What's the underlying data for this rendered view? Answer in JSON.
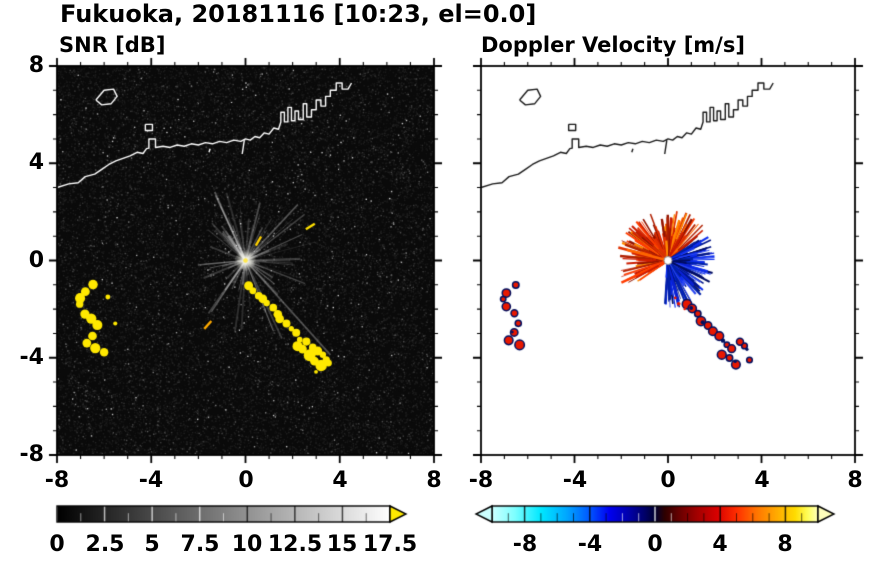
{
  "title": "Fukuoka, 20181116 [10:23, el=0.0]",
  "panels": {
    "snr": {
      "title": "SNR [dB]",
      "x_tick_labels": [
        "-8",
        "-4",
        "0",
        "4",
        "8"
      ],
      "y_tick_labels": [
        "8",
        "4",
        "0",
        "-4",
        "-8"
      ],
      "colorbar_labels": [
        "0",
        "2.5",
        "5",
        "7.5",
        "10",
        "12.5",
        "15",
        "17.5"
      ]
    },
    "doppler": {
      "title": "Doppler Velocity [m/s]",
      "x_tick_labels": [
        "-8",
        "-4",
        "0",
        "4",
        "8"
      ],
      "colorbar_labels": [
        "-8",
        "-4",
        "0",
        "4",
        "8"
      ]
    }
  },
  "chart_data": [
    {
      "type": "heatmap",
      "title": "SNR [dB]",
      "x_range": [
        -8,
        8
      ],
      "y_range": [
        -8,
        8
      ],
      "x_ticks": [
        -8,
        -4,
        0,
        4,
        8
      ],
      "y_ticks": [
        -8,
        -4,
        0,
        4,
        8
      ],
      "minor_tick_step": 1,
      "colorbar": {
        "range": [
          0,
          17.5
        ],
        "tick_values": [
          0,
          2.5,
          5,
          7.5,
          10,
          12.5,
          15,
          17.5
        ],
        "minor_step": 1.25,
        "stops": [
          [
            0,
            "#000000"
          ],
          [
            1,
            "#ffffff"
          ]
        ],
        "overflow_right": "#ffe800"
      },
      "background": {
        "color": "#0a0a0a",
        "noise": "dark gray receiver-noise speckle"
      },
      "radar_site": [
        0,
        0
      ],
      "clutter_rays": {
        "count": 115,
        "max_range": 3.1,
        "color": "#d7d7d7"
      },
      "long_rays": [
        {
          "angle": -48,
          "len": 5.3,
          "alpha": 0.32
        },
        {
          "angle": -125,
          "len": 2.7,
          "alpha": 0.26
        },
        {
          "angle": 76,
          "len": 2.5,
          "alpha": 0.3
        },
        {
          "angle": 132,
          "len": 2.1,
          "alpha": 0.2
        },
        {
          "angle": -65,
          "len": 3.6,
          "alpha": 0.22
        }
      ],
      "strong_echoes": {
        "color": "#ffe800",
        "west_cluster": [
          [
            -6.5,
            -1.05
          ],
          [
            -6.8,
            -1.25
          ],
          [
            -7.05,
            -1.5
          ],
          [
            -7.1,
            -1.85
          ],
          [
            -6.85,
            -2.15
          ],
          [
            -6.55,
            -2.35
          ],
          [
            -6.3,
            -2.7
          ],
          [
            -6.45,
            -3.05
          ],
          [
            -6.75,
            -3.35
          ],
          [
            -6.4,
            -3.6
          ],
          [
            -6.0,
            -3.72
          ]
        ],
        "southeast_chain": [
          [
            0.15,
            -1.05
          ],
          [
            0.35,
            -1.25
          ],
          [
            0.55,
            -1.45
          ],
          [
            0.75,
            -1.6
          ],
          [
            0.95,
            -1.8
          ],
          [
            1.15,
            -2.0
          ],
          [
            1.35,
            -2.2
          ],
          [
            1.5,
            -2.45
          ],
          [
            1.7,
            -2.6
          ],
          [
            1.9,
            -2.8
          ],
          [
            2.1,
            -3.0
          ],
          [
            2.3,
            -3.2
          ],
          [
            2.55,
            -3.35
          ],
          [
            2.8,
            -3.55
          ],
          [
            3.05,
            -3.7
          ],
          [
            3.25,
            -3.9
          ],
          [
            3.45,
            -4.1
          ]
        ],
        "southeast_blobs": [
          [
            2.45,
            -3.6
          ],
          [
            2.7,
            -3.85
          ],
          [
            2.95,
            -4.1
          ],
          [
            3.2,
            -4.3
          ],
          [
            2.2,
            -3.5
          ],
          [
            3.5,
            -4.2
          ]
        ],
        "specks": [
          [
            -5.55,
            -2.55
          ],
          [
            -5.85,
            -1.5
          ],
          [
            2.95,
            -4.55
          ]
        ]
      },
      "dashes": [
        {
          "x": 2.75,
          "y": 1.4,
          "angle": 32,
          "color": "#ffe000"
        },
        {
          "x": -1.6,
          "y": -2.65,
          "angle": 48,
          "color": "#ffaa00"
        },
        {
          "x": 0.55,
          "y": 0.8,
          "angle": 60,
          "color": "#ffd000"
        }
      ],
      "coast_color": "#ffffff",
      "coastline": [
        [
          -8,
          3.0
        ],
        [
          -7.5,
          3.15
        ],
        [
          -7.1,
          3.2
        ],
        [
          -6.8,
          3.45
        ],
        [
          -6.4,
          3.55
        ],
        [
          -6.1,
          3.75
        ],
        [
          -5.8,
          3.95
        ],
        [
          -5.5,
          4.1
        ],
        [
          -5.2,
          4.2
        ],
        [
          -4.9,
          4.3
        ],
        [
          -4.6,
          4.45
        ],
        [
          -4.35,
          4.4
        ],
        [
          -4.2,
          4.6
        ],
        [
          -4.1,
          4.62
        ],
        [
          -4.1,
          5.0
        ],
        [
          -3.82,
          5.0
        ],
        [
          -3.82,
          4.65
        ],
        [
          -3.5,
          4.7
        ],
        [
          -3.2,
          4.65
        ],
        [
          -2.9,
          4.75
        ],
        [
          -2.6,
          4.7
        ],
        [
          -2.3,
          4.8
        ],
        [
          -2.0,
          4.75
        ],
        [
          -1.7,
          4.85
        ],
        [
          -1.4,
          4.8
        ],
        [
          -1.1,
          4.9
        ],
        [
          -0.8,
          4.85
        ],
        [
          -0.5,
          4.95
        ],
        [
          -0.2,
          4.9
        ],
        [
          0.0,
          5.0
        ],
        [
          0.2,
          4.95
        ],
        [
          0.4,
          5.1
        ],
        [
          0.6,
          5.05
        ],
        [
          0.8,
          5.25
        ],
        [
          1.0,
          5.2
        ],
        [
          1.2,
          5.45
        ],
        [
          1.4,
          5.4
        ],
        [
          1.5,
          5.7
        ],
        [
          1.5,
          6.1
        ],
        [
          1.65,
          6.1
        ],
        [
          1.65,
          5.7
        ],
        [
          1.8,
          5.7
        ],
        [
          1.8,
          6.3
        ],
        [
          1.95,
          6.3
        ],
        [
          1.95,
          5.75
        ],
        [
          2.1,
          5.75
        ],
        [
          2.1,
          6.15
        ],
        [
          2.25,
          6.15
        ],
        [
          2.25,
          5.8
        ],
        [
          2.45,
          5.8
        ],
        [
          2.45,
          6.45
        ],
        [
          2.6,
          6.45
        ],
        [
          2.6,
          5.9
        ],
        [
          2.8,
          5.9
        ],
        [
          2.8,
          6.2
        ],
        [
          3.0,
          6.2
        ],
        [
          3.0,
          6.6
        ],
        [
          3.2,
          6.6
        ],
        [
          3.2,
          6.35
        ],
        [
          3.4,
          6.35
        ],
        [
          3.4,
          6.75
        ],
        [
          3.6,
          6.75
        ],
        [
          3.6,
          7.0
        ],
        [
          3.85,
          7.0
        ],
        [
          3.85,
          7.3
        ],
        [
          4.1,
          7.3
        ],
        [
          4.1,
          7.05
        ],
        [
          4.35,
          7.05
        ],
        [
          4.5,
          7.3
        ]
      ],
      "islands": [
        [
          [
            -6.35,
            6.6
          ],
          [
            -6.0,
            7.0
          ],
          [
            -5.6,
            7.05
          ],
          [
            -5.45,
            6.75
          ],
          [
            -5.7,
            6.45
          ],
          [
            -6.1,
            6.4
          ],
          [
            -6.35,
            6.6
          ]
        ],
        [
          [
            -4.25,
            5.6
          ],
          [
            -3.95,
            5.6
          ],
          [
            -3.95,
            5.35
          ],
          [
            -4.25,
            5.35
          ],
          [
            -4.25,
            5.6
          ]
        ]
      ],
      "coast_marks": [
        [
          [
            -0.05,
            4.95
          ],
          [
            -0.14,
            4.38
          ]
        ],
        [
          [
            -1.5,
            4.6
          ],
          [
            -1.55,
            4.45
          ]
        ]
      ]
    },
    {
      "type": "heatmap",
      "title": "Doppler Velocity [m/s]",
      "x_range": [
        -8,
        8
      ],
      "y_range": [
        -8,
        8
      ],
      "x_ticks": [
        -8,
        -4,
        0,
        4,
        8
      ],
      "y_ticks": [
        -8,
        -4,
        0,
        4,
        8
      ],
      "minor_tick_step": 1,
      "colorbar": {
        "range": [
          -10,
          10
        ],
        "tick_values": [
          -8,
          -4,
          0,
          4,
          8
        ],
        "minor_step": 1,
        "stops": [
          [
            0,
            "#ccffff"
          ],
          [
            0.07,
            "#7dffff"
          ],
          [
            0.15,
            "#00e8ff"
          ],
          [
            0.23,
            "#00a6ff"
          ],
          [
            0.3,
            "#0057ff"
          ],
          [
            0.36,
            "#0000f0"
          ],
          [
            0.42,
            "#0000aa"
          ],
          [
            0.47,
            "#000066"
          ],
          [
            0.5,
            "#000030"
          ],
          [
            0.53,
            "#2e0000"
          ],
          [
            0.58,
            "#6e0000"
          ],
          [
            0.63,
            "#a40000"
          ],
          [
            0.69,
            "#d80000"
          ],
          [
            0.75,
            "#ff2e00"
          ],
          [
            0.81,
            "#ff7300"
          ],
          [
            0.87,
            "#ffa800"
          ],
          [
            0.93,
            "#ffdc00"
          ],
          [
            0.97,
            "#ffff5e"
          ],
          [
            1,
            "#ffffbb"
          ]
        ],
        "arrow_left": "#ccffff",
        "arrow_right": "#ffffbb"
      },
      "background": {
        "color": "#ffffff"
      },
      "radar_site": [
        0,
        0
      ],
      "fans": [
        {
          "name": "positive-velocity-red-fan",
          "angles": [
            40,
            215
          ],
          "max_len": 2.05,
          "count": 340,
          "widths": [
            0.7,
            2.6
          ],
          "colors": [
            "#ff3c00",
            "#e03000",
            "#ff6600",
            "#b02000",
            "#ff8a00",
            "#cc1c00",
            "#8f1400"
          ],
          "seed": 7
        },
        {
          "name": "negative-velocity-blue-fan",
          "angles": [
            -95,
            35
          ],
          "max_len": 1.9,
          "count": 340,
          "widths": [
            0.7,
            2.6
          ],
          "colors": [
            "#0a22d6",
            "#0c2cee",
            "#001488",
            "#000c60",
            "#2c48f2",
            "#0020a8"
          ],
          "seed": 11
        }
      ],
      "echoes": {
        "fill": "#e81800",
        "edge": "#001060",
        "west_cluster": [
          [
            -6.55,
            -1.0
          ],
          [
            -6.85,
            -1.3
          ],
          [
            -7.0,
            -1.6
          ],
          [
            -6.9,
            -1.95
          ],
          [
            -6.6,
            -2.2
          ],
          [
            -6.4,
            -2.55
          ],
          [
            -6.55,
            -2.95
          ],
          [
            -6.8,
            -3.25
          ],
          [
            -6.35,
            -3.5
          ]
        ],
        "southeast_chain": [
          [
            0.85,
            -1.8
          ],
          [
            1.05,
            -2.0
          ],
          [
            1.25,
            -2.2
          ],
          [
            1.45,
            -2.45
          ],
          [
            1.7,
            -2.65
          ],
          [
            1.95,
            -2.9
          ],
          [
            2.2,
            -3.15
          ],
          [
            2.5,
            -3.4
          ],
          [
            2.75,
            -3.6
          ],
          [
            2.3,
            -3.85
          ],
          [
            2.6,
            -4.0
          ],
          [
            2.95,
            -4.25
          ],
          [
            3.3,
            -3.5
          ],
          [
            3.1,
            -3.3
          ],
          [
            3.45,
            -4.15
          ]
        ],
        "specks": [
          [
            0.45,
            -1.75
          ],
          [
            0.65,
            -1.95
          ],
          [
            0.3,
            -1.5
          ]
        ],
        "navy_dots": [
          [
            2.4,
            -3.35
          ],
          [
            2.85,
            -4.15
          ],
          [
            1.5,
            -2.55
          ],
          [
            -6.6,
            -2.9
          ],
          [
            3.35,
            -3.6
          ],
          [
            0.95,
            -1.9
          ]
        ]
      },
      "center_marker": {
        "fill": "#ffffff",
        "edge": "#909090",
        "radius_px": 4
      },
      "coast_color": "#1a1a1a"
    }
  ]
}
